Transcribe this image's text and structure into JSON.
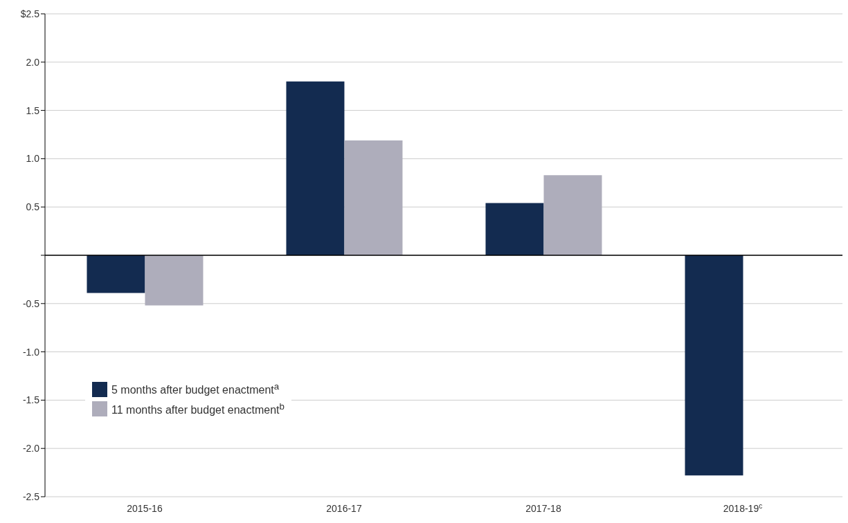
{
  "chart_data": {
    "type": "bar",
    "categories": [
      "2015-16",
      "2016-17",
      "2017-18",
      "2018-19$^{c}$"
    ],
    "series": [
      {
        "name": "5 months after budget enactment$^{a}$",
        "color": "#132b50",
        "values": [
          -0.39,
          1.8,
          0.54,
          -2.28
        ]
      },
      {
        "name": "11 months after budget enactment$^{b}$",
        "color": "#aeadbb",
        "values": [
          -0.52,
          1.19,
          0.83,
          null
        ]
      }
    ],
    "ylim": [
      -2.5,
      2.5
    ],
    "yticks": [
      {
        "value": -2.5,
        "label": "-2.5"
      },
      {
        "value": -2,
        "label": "-2.0"
      },
      -1.5,
      {
        "value": -1,
        "label": "-1.0"
      },
      -0.5,
      {
        "value": 0,
        "label": null
      },
      0.5,
      {
        "value": 1,
        "label": "1.0"
      },
      1.5,
      {
        "value": 2,
        "label": "2.0"
      },
      {
        "value": 2.5,
        "label": "$2.5"
      }
    ],
    "grid": "y",
    "legend": "bottom left"
  }
}
